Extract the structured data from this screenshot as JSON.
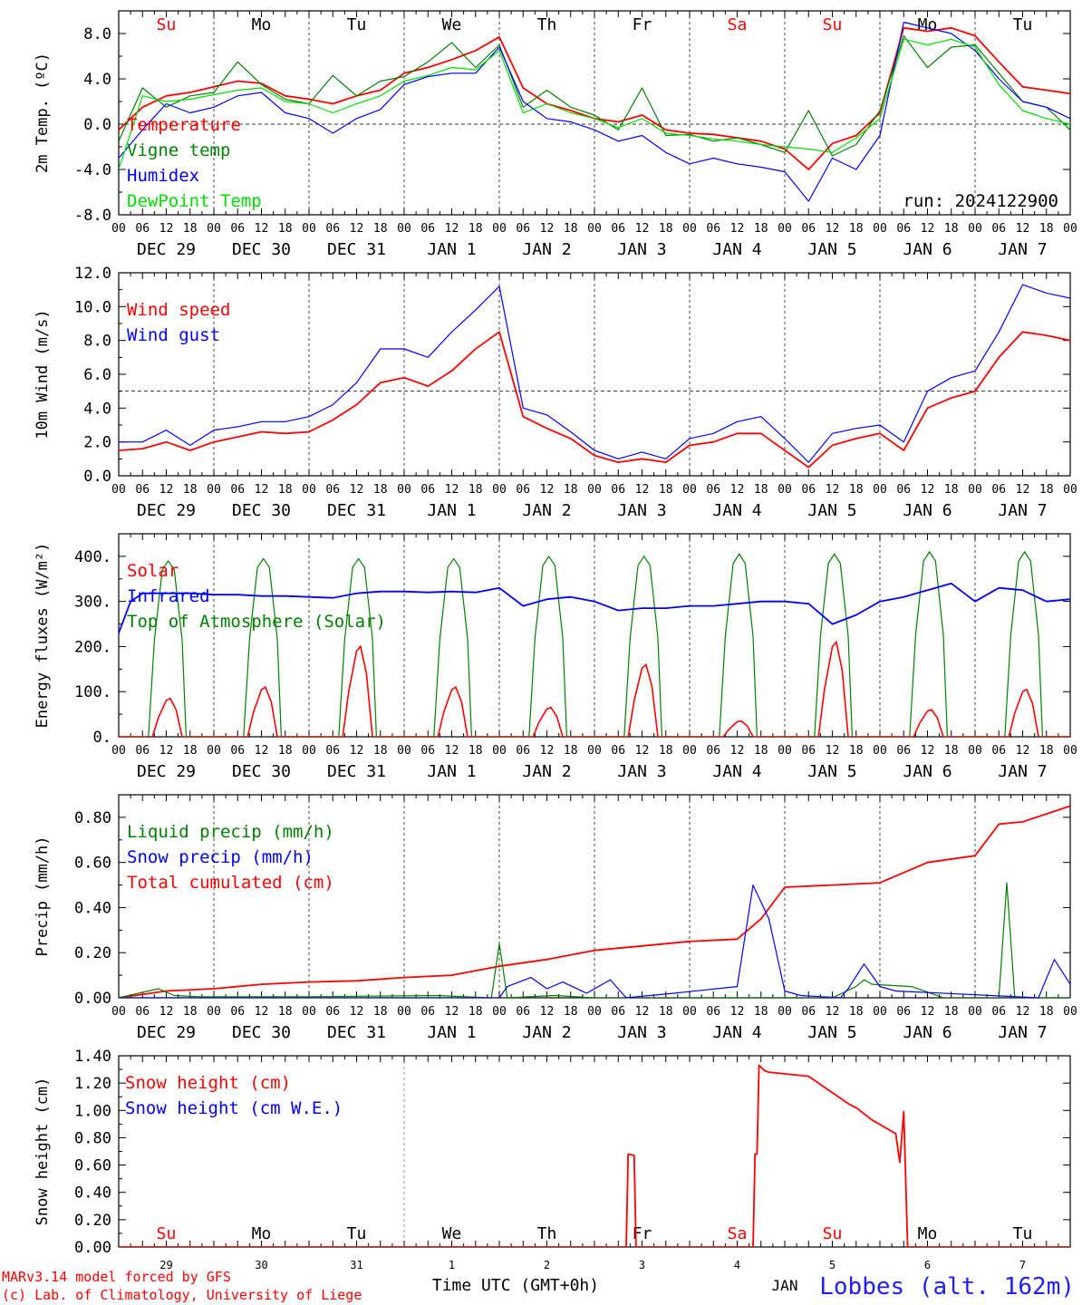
{
  "chart_data": [
    {
      "type": "line",
      "ylabel": "2m Temp. (ºC)",
      "ylim": [
        -8,
        10
      ],
      "yticks": [
        -8,
        -4,
        0,
        4,
        8
      ],
      "ytick_labels": [
        "-8.0",
        "-4.0",
        "0.0",
        "4.0",
        "8.0"
      ],
      "reference_line": 0,
      "annotation": "run: 2024122900",
      "legend": [
        {
          "name": "Temperature",
          "color": "#ff0000"
        },
        {
          "name": "Vigne temp",
          "color": "#008000"
        },
        {
          "name": "Humidex",
          "color": "#0000ff"
        },
        {
          "name": "DewPoint Temp",
          "color": "#00dd00"
        }
      ],
      "series": [
        {
          "name": "Temperature",
          "color": "#ff0000",
          "x": [
            0,
            6,
            12,
            18,
            24,
            30,
            36,
            42,
            48,
            54,
            60,
            66,
            72,
            78,
            84,
            90,
            96,
            102,
            108,
            114,
            120,
            126,
            132,
            138,
            144,
            150,
            156,
            162,
            168,
            174,
            180,
            186,
            192,
            198,
            204,
            210,
            216,
            222,
            228,
            234,
            240
          ],
          "values": [
            -0.5,
            1.5,
            2.5,
            2.8,
            3.3,
            3.8,
            3.6,
            2.5,
            2.2,
            1.8,
            2.5,
            3.0,
            4.5,
            5.0,
            5.7,
            6.5,
            7.7,
            3.2,
            1.8,
            1.2,
            0.5,
            0.2,
            0.8,
            -0.5,
            -0.8,
            -0.9,
            -1.2,
            -1.5,
            -2.2,
            -4.0,
            -1.7,
            -1.0,
            1.0,
            8.5,
            8.2,
            8.5,
            7.8,
            5.5,
            3.3,
            3.0,
            2.7
          ]
        },
        {
          "name": "Vigne temp",
          "color": "#008000",
          "x": [
            0,
            6,
            12,
            18,
            24,
            30,
            36,
            42,
            48,
            54,
            60,
            66,
            72,
            78,
            84,
            90,
            96,
            102,
            108,
            114,
            120,
            126,
            132,
            138,
            144,
            150,
            156,
            162,
            168,
            174,
            180,
            186,
            192,
            198,
            204,
            210,
            216,
            222,
            228,
            234,
            240
          ],
          "values": [
            -1.5,
            3.2,
            1.5,
            2.5,
            2.8,
            5.5,
            3.5,
            2.2,
            1.8,
            4.3,
            2.5,
            3.8,
            4.2,
            5.5,
            7.2,
            5.0,
            7.0,
            1.5,
            3.0,
            1.5,
            0.8,
            -0.5,
            3.2,
            -1.0,
            -0.9,
            -1.5,
            -1.2,
            -1.8,
            -2.5,
            1.2,
            -2.8,
            -1.8,
            1.2,
            7.8,
            5.0,
            6.8,
            7.0,
            4.5,
            2.0,
            1.5,
            -0.5
          ]
        },
        {
          "name": "Humidex",
          "color": "#0000ff",
          "x": [
            0,
            6,
            12,
            18,
            24,
            30,
            36,
            42,
            48,
            54,
            60,
            66,
            72,
            78,
            84,
            90,
            96,
            102,
            108,
            114,
            120,
            126,
            132,
            138,
            144,
            150,
            156,
            162,
            168,
            174,
            180,
            186,
            192,
            198,
            204,
            210,
            216,
            222,
            228,
            234,
            240
          ],
          "values": [
            -3.0,
            -0.5,
            1.8,
            1.0,
            1.5,
            2.5,
            2.8,
            1.0,
            0.5,
            -0.8,
            0.5,
            1.3,
            3.5,
            4.2,
            4.5,
            4.5,
            6.8,
            2.0,
            0.5,
            0.2,
            -0.5,
            -1.5,
            -1.0,
            -2.5,
            -3.5,
            -3.0,
            -3.5,
            -3.8,
            -4.2,
            -6.8,
            -3.0,
            -4.0,
            -1.0,
            9.0,
            8.5,
            8.0,
            6.5,
            4.0,
            2.0,
            1.5,
            0.5
          ]
        },
        {
          "name": "DewPoint Temp",
          "color": "#00dd00",
          "x": [
            0,
            6,
            12,
            18,
            24,
            30,
            36,
            42,
            48,
            54,
            60,
            66,
            72,
            78,
            84,
            90,
            96,
            102,
            108,
            114,
            120,
            126,
            132,
            138,
            144,
            150,
            156,
            162,
            168,
            174,
            180,
            186,
            192,
            198,
            204,
            210,
            216,
            222,
            228,
            234,
            240
          ],
          "values": [
            -4.0,
            2.5,
            2.0,
            2.2,
            2.6,
            3.0,
            3.2,
            2.0,
            1.8,
            1.0,
            1.8,
            2.5,
            3.8,
            4.3,
            5.0,
            4.8,
            6.5,
            1.0,
            1.8,
            1.0,
            0.5,
            -0.3,
            0.5,
            -0.8,
            -1.0,
            -1.3,
            -1.5,
            -1.8,
            -2.0,
            -2.2,
            -2.5,
            -1.2,
            0.5,
            7.5,
            7.0,
            7.5,
            6.8,
            3.5,
            1.2,
            0.5,
            0.0
          ]
        }
      ]
    },
    {
      "type": "line",
      "ylabel": "10m Wind (m/s)",
      "ylim": [
        0,
        12
      ],
      "yticks": [
        0,
        2,
        4,
        6,
        8,
        10,
        12
      ],
      "ytick_labels": [
        "0.0",
        "2.0",
        "4.0",
        "6.0",
        "8.0",
        "10.0",
        "12.0"
      ],
      "reference_line": 5,
      "legend": [
        {
          "name": "Wind speed",
          "color": "#ff0000"
        },
        {
          "name": "Wind gust",
          "color": "#0000ff"
        }
      ],
      "series": [
        {
          "name": "Wind speed",
          "color": "#ff0000",
          "x": [
            0,
            6,
            12,
            18,
            24,
            30,
            36,
            42,
            48,
            54,
            60,
            66,
            72,
            78,
            84,
            90,
            96,
            102,
            108,
            114,
            120,
            126,
            132,
            138,
            144,
            150,
            156,
            162,
            168,
            174,
            180,
            186,
            192,
            198,
            204,
            210,
            216,
            222,
            228,
            234,
            240
          ],
          "values": [
            1.5,
            1.6,
            2.0,
            1.5,
            2.0,
            2.3,
            2.6,
            2.5,
            2.6,
            3.3,
            4.2,
            5.5,
            5.8,
            5.3,
            6.2,
            7.5,
            8.5,
            3.5,
            2.8,
            2.2,
            1.2,
            0.8,
            1.0,
            0.8,
            1.8,
            2.0,
            2.5,
            2.5,
            1.5,
            0.5,
            1.8,
            2.2,
            2.5,
            1.5,
            4.0,
            4.6,
            5.0,
            7.0,
            8.5,
            8.3,
            8.0
          ]
        },
        {
          "name": "Wind gust",
          "color": "#0000ff",
          "x": [
            0,
            6,
            12,
            18,
            24,
            30,
            36,
            42,
            48,
            54,
            60,
            66,
            72,
            78,
            84,
            90,
            96,
            102,
            108,
            114,
            120,
            126,
            132,
            138,
            144,
            150,
            156,
            162,
            168,
            174,
            180,
            186,
            192,
            198,
            204,
            210,
            216,
            222,
            228,
            234,
            240
          ],
          "values": [
            2.0,
            2.0,
            2.7,
            1.8,
            2.7,
            2.9,
            3.2,
            3.2,
            3.5,
            4.2,
            5.5,
            7.5,
            7.5,
            7.0,
            8.5,
            9.8,
            11.2,
            4.0,
            3.6,
            2.6,
            1.5,
            1.0,
            1.4,
            1.0,
            2.2,
            2.5,
            3.2,
            3.5,
            2.2,
            0.8,
            2.5,
            2.8,
            3.0,
            2.0,
            5.0,
            5.8,
            6.2,
            8.5,
            11.3,
            10.8,
            10.5
          ]
        }
      ]
    },
    {
      "type": "line",
      "ylabel": "Energy fluxes (W/m²)",
      "ylim": [
        0,
        450
      ],
      "yticks": [
        0,
        100,
        200,
        300,
        400
      ],
      "ytick_labels": [
        "0.",
        "100.",
        "200.",
        "300.",
        "400."
      ],
      "legend": [
        {
          "name": "Solar",
          "color": "#ff0000"
        },
        {
          "name": "Infrared",
          "color": "#0000ff"
        },
        {
          "name": "Top of Atmosphere (Solar)",
          "color": "#008000"
        }
      ],
      "toa_peaks": [
        390,
        395,
        395,
        395,
        400,
        400,
        405,
        405,
        410,
        410
      ],
      "solar_peaks": [
        85,
        110,
        200,
        110,
        65,
        160,
        35,
        210,
        60,
        105
      ],
      "series": [
        {
          "name": "Infrared",
          "color": "#0000ff",
          "x": [
            0,
            3,
            6,
            12,
            18,
            24,
            30,
            36,
            42,
            48,
            54,
            60,
            66,
            72,
            78,
            84,
            90,
            96,
            102,
            108,
            114,
            120,
            126,
            132,
            138,
            144,
            150,
            156,
            162,
            168,
            174,
            180,
            186,
            192,
            198,
            204,
            210,
            216,
            222,
            228,
            234,
            240
          ],
          "values": [
            230,
            300,
            318,
            318,
            318,
            315,
            315,
            312,
            312,
            310,
            308,
            318,
            322,
            322,
            320,
            322,
            320,
            330,
            290,
            305,
            310,
            300,
            280,
            285,
            285,
            290,
            290,
            295,
            300,
            300,
            295,
            250,
            270,
            300,
            310,
            325,
            340,
            300,
            330,
            325,
            300,
            305
          ]
        }
      ]
    },
    {
      "type": "line",
      "ylabel": "Precip (mm/h)",
      "ylim": [
        0,
        0.9
      ],
      "yticks": [
        0,
        0.2,
        0.4,
        0.6,
        0.8
      ],
      "ytick_labels": [
        "0.00",
        "0.20",
        "0.40",
        "0.60",
        "0.80"
      ],
      "legend": [
        {
          "name": "Liquid precip (mm/h)",
          "color": "#008000"
        },
        {
          "name": "Snow precip (mm/h)",
          "color": "#0000ff"
        },
        {
          "name": "Total cumulated (cm)",
          "color": "#ff0000"
        }
      ],
      "series": [
        {
          "name": "Total cumulated (cm)",
          "color": "#ff0000",
          "x": [
            0,
            12,
            24,
            36,
            48,
            60,
            72,
            84,
            96,
            108,
            120,
            132,
            144,
            156,
            162,
            168,
            180,
            192,
            204,
            216,
            222,
            228,
            240
          ],
          "values": [
            0,
            0.03,
            0.04,
            0.06,
            0.07,
            0.075,
            0.09,
            0.1,
            0.14,
            0.17,
            0.21,
            0.23,
            0.25,
            0.26,
            0.35,
            0.49,
            0.5,
            0.51,
            0.6,
            0.63,
            0.77,
            0.78,
            0.85
          ]
        },
        {
          "name": "Liquid precip (mm/h)",
          "color": "#008000",
          "x": [
            0,
            10,
            14,
            20,
            48,
            80,
            94,
            96,
            98,
            110,
            120,
            180,
            186,
            188,
            190,
            200,
            208,
            222,
            224,
            226,
            240
          ],
          "values": [
            0,
            0.04,
            0.01,
            0.005,
            0.005,
            0.01,
            0.0,
            0.24,
            0.0,
            0.01,
            0.0,
            0.0,
            0.05,
            0.08,
            0.06,
            0.05,
            0.0,
            0.0,
            0.51,
            0.0,
            0.0
          ]
        },
        {
          "name": "Snow precip (mm/h)",
          "color": "#0000ff",
          "x": [
            0,
            96,
            98,
            104,
            108,
            112,
            118,
            124,
            128,
            140,
            156,
            160,
            164,
            168,
            172,
            182,
            184,
            188,
            192,
            196,
            232,
            236,
            240
          ],
          "values": [
            0,
            0,
            0.05,
            0.09,
            0.04,
            0.07,
            0.02,
            0.08,
            0.0,
            0.02,
            0.05,
            0.5,
            0.35,
            0.03,
            0.01,
            0.0,
            0.04,
            0.15,
            0.05,
            0.03,
            0.0,
            0.17,
            0.06
          ]
        }
      ]
    },
    {
      "type": "line",
      "ylabel": "Snow height (cm)",
      "ylim": [
        0,
        1.4
      ],
      "yticks": [
        0,
        0.2,
        0.4,
        0.6,
        0.8,
        1.0,
        1.2,
        1.4
      ],
      "ytick_labels": [
        "0.00",
        "0.20",
        "0.40",
        "0.60",
        "0.80",
        "1.00",
        "1.20",
        "1.40"
      ],
      "legend": [
        {
          "name": "Snow height (cm)",
          "color": "#ff0000"
        },
        {
          "name": "Snow height (cm W.E.)",
          "color": "#0000ff"
        }
      ],
      "series": [
        {
          "name": "Snow height (cm)",
          "color": "#ff0000",
          "x": [
            0,
            128,
            128.5,
            130,
            130.5,
            160,
            160.5,
            161,
            161.5,
            163,
            164,
            174,
            184,
            186,
            190,
            196,
            197,
            198,
            199,
            200,
            240
          ],
          "values": [
            0,
            0,
            0.68,
            0.67,
            0,
            0,
            0.68,
            0.68,
            1.33,
            1.29,
            1.28,
            1.25,
            1.05,
            1.02,
            0.93,
            0.83,
            0.62,
            0.99,
            0,
            0,
            0
          ]
        }
      ]
    }
  ],
  "axes": {
    "hour_labels": [
      "00",
      "06",
      "12",
      "18"
    ],
    "end_label": "00",
    "date_labels": [
      "DEC 29",
      "DEC 30",
      "DEC 31",
      "JAN  1",
      "JAN  2",
      "JAN  3",
      "JAN  4",
      "JAN  5",
      "JAN  6",
      "JAN  7"
    ],
    "weekdays": [
      {
        "text": "Su",
        "color": "#ff0000"
      },
      {
        "text": "Mo",
        "color": "#000000"
      },
      {
        "text": "Tu",
        "color": "#000000"
      },
      {
        "text": "We",
        "color": "#000000"
      },
      {
        "text": "Th",
        "color": "#000000"
      },
      {
        "text": "Fr",
        "color": "#000000"
      },
      {
        "text": "Sa",
        "color": "#ff0000"
      },
      {
        "text": "Su",
        "color": "#ff0000"
      },
      {
        "text": "Mo",
        "color": "#000000"
      },
      {
        "text": "Tu",
        "color": "#000000"
      }
    ],
    "day_numbers": [
      "29",
      "30",
      "31",
      "1",
      "2",
      "3",
      "4",
      "5",
      "6",
      "7"
    ]
  },
  "footer": {
    "credit_line1": "MARv3.14 model forced by GFS",
    "credit_line2": "(c) Lab. of Climatology, University of Liege",
    "xlabel": "Time UTC (GMT+0h)",
    "month": "JAN",
    "station": "Lobbes (alt. 162m)"
  }
}
